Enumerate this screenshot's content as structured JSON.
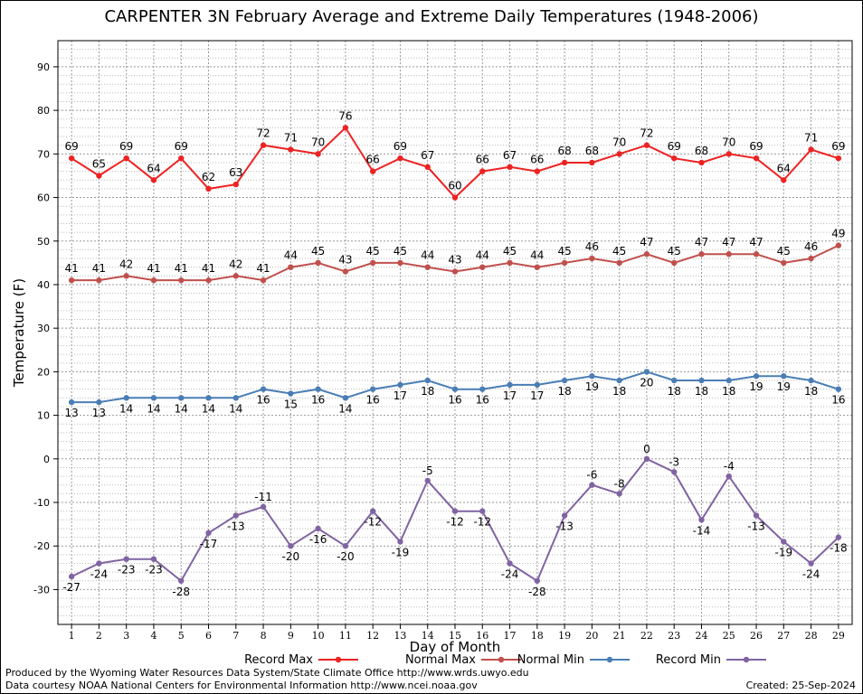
{
  "chart_data": {
    "type": "line",
    "title": "CARPENTER 3N February Average and Extreme Daily Temperatures (1948-2006)",
    "xlabel": "Day of Month",
    "ylabel": "Temperature (F)",
    "xlim": [
      0.5,
      29.5
    ],
    "ylim": [
      -38,
      96
    ],
    "yticks": [
      -30,
      -20,
      -10,
      0,
      10,
      20,
      30,
      40,
      50,
      60,
      70,
      80,
      90
    ],
    "x": [
      1,
      2,
      3,
      4,
      5,
      6,
      7,
      8,
      9,
      10,
      11,
      12,
      13,
      14,
      15,
      16,
      17,
      18,
      19,
      20,
      21,
      22,
      23,
      24,
      25,
      26,
      27,
      28,
      29
    ],
    "grid": true,
    "legend_position": "bottom",
    "series": [
      {
        "name": "Record Max",
        "color": "#ee2222",
        "values": [
          69,
          65,
          69,
          64,
          69,
          62,
          63,
          72,
          71,
          70,
          76,
          66,
          69,
          67,
          60,
          66,
          67,
          66,
          68,
          68,
          70,
          72,
          69,
          68,
          70,
          69,
          64,
          71,
          69
        ]
      },
      {
        "name": "Normal Max",
        "color": "#c0504d",
        "values": [
          41,
          41,
          42,
          41,
          41,
          41,
          42,
          41,
          44,
          45,
          43,
          45,
          45,
          44,
          43,
          44,
          45,
          44,
          45,
          46,
          45,
          47,
          45,
          47,
          47,
          47,
          45,
          46,
          49
        ]
      },
      {
        "name": "Normal Min",
        "color": "#4a7eb5",
        "values": [
          13,
          13,
          14,
          14,
          14,
          14,
          14,
          16,
          15,
          16,
          14,
          16,
          17,
          18,
          16,
          16,
          17,
          17,
          18,
          19,
          18,
          20,
          18,
          18,
          18,
          19,
          19,
          18,
          16
        ]
      },
      {
        "name": "Record Min",
        "color": "#8064a2",
        "values": [
          -27,
          -24,
          -23,
          -23,
          -28,
          -17,
          -13,
          -11,
          -20,
          -16,
          -20,
          -12,
          -19,
          -5,
          -12,
          -12,
          -24,
          -28,
          -13,
          -6,
          -8,
          0,
          -3,
          -14,
          -4,
          -13,
          -19,
          -24,
          -18
        ]
      }
    ]
  },
  "footer": {
    "produced_by": "Produced by the Wyoming Water Resources Data System/State Climate Office http://www.wrds.uwyo.edu",
    "data_courtesy": "Data courtesy NOAA National Centers for Environmental Information http://www.ncei.noaa.gov",
    "created": "Created: 25-Sep-2024"
  }
}
